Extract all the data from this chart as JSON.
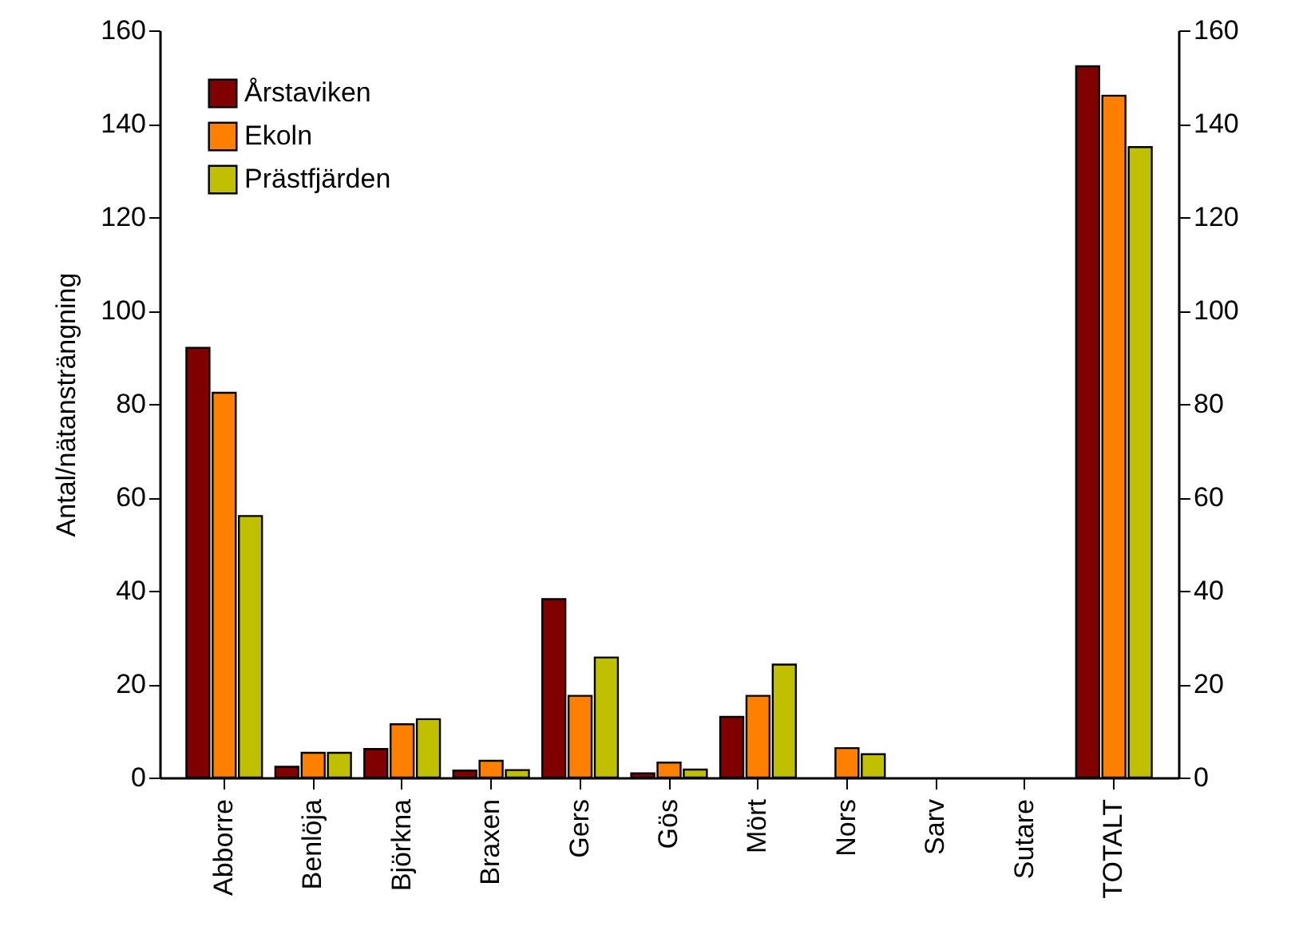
{
  "chart_data": {
    "type": "bar",
    "ylabel": "Antal/nätansträngning",
    "categories": [
      "Abborre",
      "Benlöja",
      "Björkna",
      "Braxen",
      "Gers",
      "Gös",
      "Mört",
      "Nors",
      "Sarv",
      "Sutare",
      "TOTALT"
    ],
    "series": [
      {
        "name": "Årstaviken",
        "color": "#800000",
        "values": [
          92,
          2.3,
          6.1,
          1.5,
          38.2,
          0.9,
          13,
          0,
          0,
          0,
          152.3
        ]
      },
      {
        "name": "Ekoln",
        "color": "#ff8000",
        "values": [
          82.4,
          5.3,
          11.4,
          3.6,
          17.5,
          3.2,
          17.5,
          6.3,
          0,
          0,
          146
        ]
      },
      {
        "name": "Prästfjärden",
        "color": "#c0c000",
        "values": [
          56,
          5.3,
          12.5,
          1.6,
          25.7,
          1.7,
          24.2,
          5,
          0,
          0,
          135
        ]
      }
    ],
    "ylim": [
      0,
      160
    ],
    "yticks": [
      0,
      20,
      40,
      60,
      80,
      100,
      120,
      140,
      160
    ],
    "y2lim": [
      0,
      160
    ],
    "y2ticks": [
      0,
      20,
      40,
      60,
      80,
      100,
      120,
      140,
      160
    ],
    "grid": false,
    "legend": "top left"
  }
}
